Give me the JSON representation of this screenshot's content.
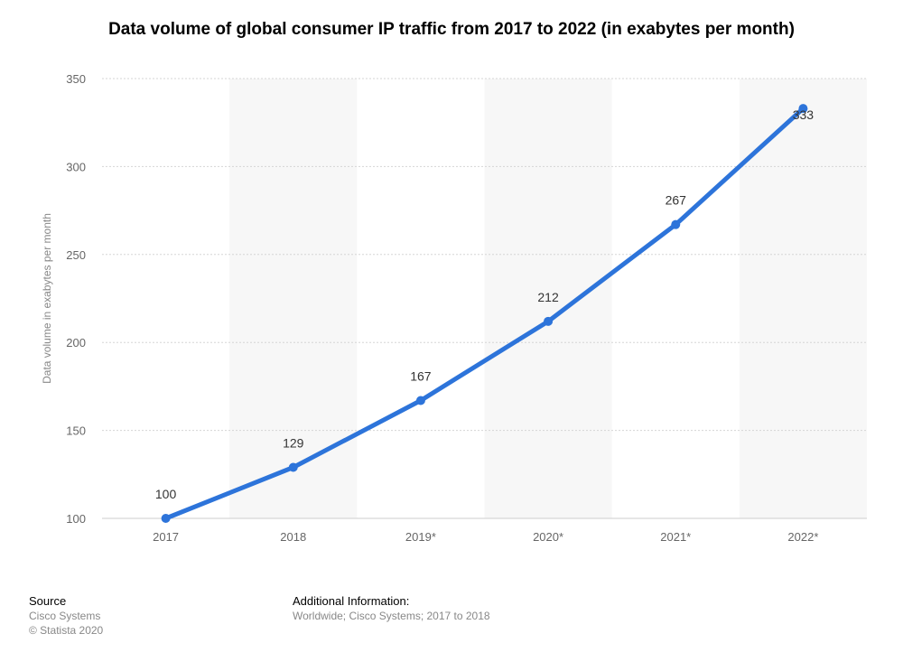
{
  "title": "Data volume of global consumer IP traffic from 2017 to 2022 (in exabytes per month)",
  "chart_data": {
    "type": "line",
    "title": "Data volume of global consumer IP traffic from 2017 to 2022 (in exabytes per month)",
    "categories": [
      "2017",
      "2018",
      "2019*",
      "2020*",
      "2021*",
      "2022*"
    ],
    "series": [
      {
        "values": [
          100,
          129,
          167,
          212,
          267,
          333
        ]
      }
    ],
    "xlabel": "",
    "ylabel": "Data volume in exabytes per month",
    "ylim": [
      100,
      350
    ],
    "yticks": [
      100,
      150,
      200,
      250,
      300,
      350
    ],
    "grid": true,
    "data_labels": true,
    "line_color": "#2d74da",
    "band_color": "#f7f7f7"
  },
  "footer": {
    "source_heading": "Source",
    "source_lines": [
      "Cisco Systems",
      "© Statista 2020"
    ],
    "info_heading": "Additional Information:",
    "info_text": "Worldwide; Cisco Systems; 2017 to 2018"
  }
}
